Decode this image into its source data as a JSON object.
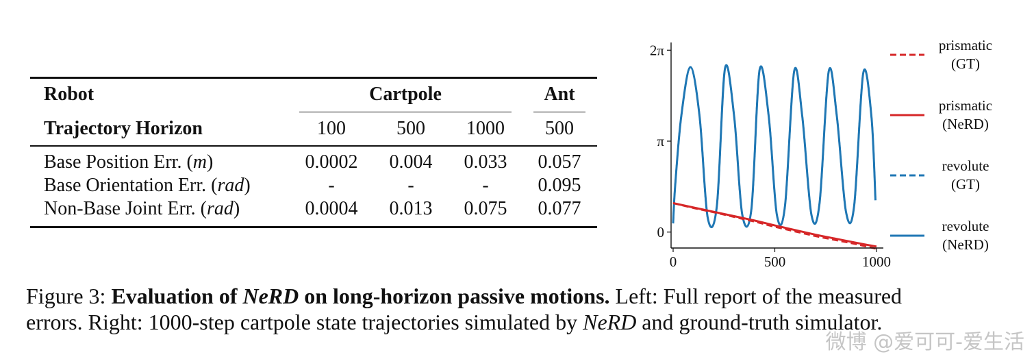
{
  "table": {
    "header1": {
      "robot": "Robot",
      "cartpole": "Cartpole",
      "ant": "Ant"
    },
    "header2": {
      "label": "Trajectory Horizon",
      "h1": "100",
      "h2": "500",
      "h3": "1000",
      "h4": "500"
    },
    "rows": [
      {
        "label": "Base Position Err. (",
        "unit": "m",
        "close": ")",
        "v1": "0.0002",
        "v2": "0.004",
        "v3": "0.033",
        "v4": "0.057"
      },
      {
        "label": "Base Orientation Err. (",
        "unit": "rad",
        "close": ")",
        "v1": "-",
        "v2": "-",
        "v3": "-",
        "v4": "0.095"
      },
      {
        "label": "Non-Base Joint Err. (",
        "unit": "rad",
        "close": ")",
        "v1": "0.0004",
        "v2": "0.013",
        "v3": "0.075",
        "v4": "0.077"
      }
    ]
  },
  "chart_data": {
    "type": "line",
    "title": "",
    "xlabel": "",
    "ylabel": "",
    "xlim": [
      0,
      1000
    ],
    "ylim": [
      -0.55,
      6.55
    ],
    "x_ticks": [
      0,
      500,
      1000
    ],
    "x_tick_labels": [
      "0",
      "500",
      "1000"
    ],
    "y_ticks": [
      0,
      3.1416,
      6.2832
    ],
    "y_tick_labels": [
      "0",
      "π",
      "2π"
    ],
    "grid": false,
    "legend_position": "right",
    "series": [
      {
        "name": "prismatic\n(GT)",
        "style": "dashed",
        "color": "#d62728",
        "x": [
          0,
          100,
          200,
          300,
          400,
          500,
          600,
          700,
          800,
          900,
          1000
        ],
        "y": [
          1.0,
          0.83,
          0.68,
          0.52,
          0.36,
          0.18,
          0.02,
          -0.14,
          -0.28,
          -0.42,
          -0.58
        ]
      },
      {
        "name": "prismatic\n(NeRD)",
        "style": "solid",
        "color": "#d62728",
        "x": [
          0,
          100,
          200,
          300,
          400,
          500,
          600,
          700,
          800,
          900,
          1000
        ],
        "y": [
          1.0,
          0.85,
          0.7,
          0.55,
          0.4,
          0.23,
          0.07,
          -0.09,
          -0.23,
          -0.37,
          -0.5
        ]
      },
      {
        "name": "revolute\n(GT)",
        "style": "dashed",
        "color": "#1f77b4",
        "x": [
          0,
          10,
          40,
          85,
          130,
          170,
          215,
          255,
          300,
          340,
          385,
          425,
          470,
          510,
          550,
          595,
          635,
          680,
          720,
          765,
          805,
          850,
          890,
          935,
          975,
          995
        ],
        "y": [
          0.3,
          1.6,
          4.0,
          5.7,
          4.0,
          0.5,
          0.9,
          5.65,
          4.0,
          0.6,
          0.8,
          5.6,
          4.0,
          0.6,
          0.9,
          5.55,
          4.0,
          0.6,
          1.0,
          5.55,
          4.0,
          0.7,
          0.9,
          5.5,
          4.0,
          1.1
        ]
      },
      {
        "name": "revolute\n(NeRD)",
        "style": "solid",
        "color": "#1f77b4",
        "x": [
          0,
          10,
          40,
          85,
          130,
          170,
          215,
          255,
          300,
          340,
          385,
          425,
          470,
          510,
          550,
          595,
          635,
          680,
          720,
          765,
          805,
          850,
          890,
          935,
          975,
          995
        ],
        "y": [
          0.3,
          1.6,
          4.0,
          5.7,
          4.0,
          0.5,
          0.9,
          5.65,
          4.0,
          0.6,
          0.8,
          5.6,
          4.0,
          0.6,
          0.9,
          5.55,
          4.0,
          0.6,
          1.0,
          5.55,
          4.0,
          0.7,
          0.9,
          5.5,
          4.0,
          1.1
        ]
      }
    ],
    "legend": [
      {
        "line1": "prismatic",
        "line2": "(GT)"
      },
      {
        "line1": "prismatic",
        "line2": "(NeRD)"
      },
      {
        "line1": "revolute",
        "line2": "(GT)"
      },
      {
        "line1": "revolute",
        "line2": "(NeRD)"
      }
    ]
  },
  "caption": {
    "prefix": "Figure 3: ",
    "bold1": "Evaluation of ",
    "bold_italic": "NeRD",
    "bold2": " on long-horizon passive motions.",
    "text1": " Left: Full report of the measured",
    "text2": "errors. Right: 1000-step cartpole state trajectories simulated by ",
    "italic2": "NeRD",
    "text3": " and ground-truth simulator."
  },
  "watermark": "微博 @爱可可-爱生活",
  "colors": {
    "red": "#d62728",
    "blue": "#1f77b4",
    "text": "#111111"
  }
}
